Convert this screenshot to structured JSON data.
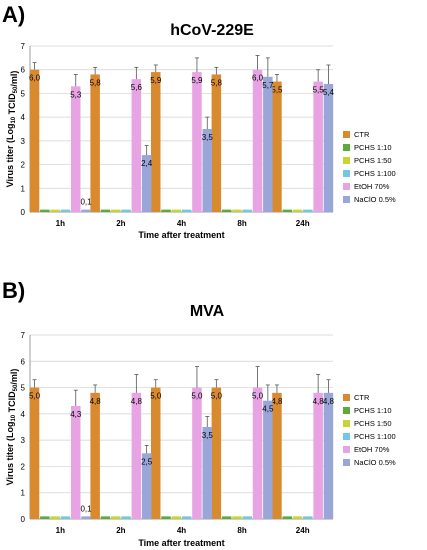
{
  "chart_data": [
    {
      "type": "bar",
      "panel_label": "A)",
      "title": "hCoV-229E",
      "ylabel_pre": "Virus titer (Log",
      "ylabel_sub1": "10",
      "ylabel_mid": " TCID",
      "ylabel_sub2": "50",
      "ylabel_post": "/ml)",
      "xlabel": "Time after treatment",
      "ylim": [
        0,
        7
      ],
      "yticks": [
        "0",
        "1",
        "2",
        "3",
        "4",
        "5",
        "6",
        "7"
      ],
      "categories": [
        "1h",
        "2h",
        "4h",
        "8h",
        "24h"
      ],
      "legend_position": "right",
      "series": [
        {
          "name": "CTR",
          "color": "#d98a2f",
          "values": [
            6.0,
            5.8,
            5.9,
            5.8,
            5.5
          ],
          "errors": [
            0.3,
            0.3,
            0.3,
            0.3,
            0.3
          ],
          "labels": [
            "6,0",
            "5,8",
            "5,9",
            "5,8",
            "5,5"
          ]
        },
        {
          "name": "PCHS 1:10",
          "color": "#5aab3a",
          "values": [
            0.1,
            0.1,
            0.1,
            0.1,
            0.1
          ],
          "errors": [
            0,
            0,
            0,
            0,
            0
          ],
          "labels": [
            "",
            "",
            "",
            "",
            ""
          ]
        },
        {
          "name": "PCHS 1:50",
          "color": "#c8d430",
          "values": [
            0.1,
            0.1,
            0.1,
            0.1,
            0.1
          ],
          "errors": [
            0,
            0,
            0,
            0,
            0
          ],
          "labels": [
            "",
            "",
            "",
            "",
            ""
          ]
        },
        {
          "name": "PCHS 1:100",
          "color": "#72c8e0",
          "values": [
            0.1,
            0.1,
            0.1,
            0.1,
            0.1
          ],
          "errors": [
            0,
            0,
            0,
            0,
            0
          ],
          "labels": [
            "",
            "",
            "",
            "",
            ""
          ]
        },
        {
          "name": "EtOH 70%",
          "color": "#e7a3e3",
          "values": [
            5.3,
            5.6,
            5.9,
            6.0,
            5.5
          ],
          "errors": [
            0.5,
            0.5,
            0.6,
            0.6,
            0.5
          ],
          "labels": [
            "5,3",
            "5,6",
            "5,9",
            "6,0",
            "5,5"
          ]
        },
        {
          "name": "NaClO 0.5%",
          "color": "#9aa6d8",
          "values": [
            0.1,
            2.4,
            3.5,
            5.7,
            5.4
          ],
          "errors": [
            0,
            0.4,
            0.5,
            0.8,
            0.8
          ],
          "labels": [
            "0,1",
            "2,4",
            "3,5",
            "5,7",
            "5,4"
          ]
        }
      ]
    },
    {
      "type": "bar",
      "panel_label": "B)",
      "title": "MVA",
      "ylabel_pre": "Virus titer (Log",
      "ylabel_sub1": "10",
      "ylabel_mid": " TCID",
      "ylabel_sub2": "50",
      "ylabel_post": "/ml)",
      "xlabel": "Time after treatment",
      "ylim": [
        0,
        7
      ],
      "yticks": [
        "0",
        "1",
        "2",
        "3",
        "4",
        "5",
        "6",
        "7"
      ],
      "categories": [
        "1h",
        "2h",
        "4h",
        "8h",
        "24h"
      ],
      "legend_position": "right",
      "series": [
        {
          "name": "CTR",
          "color": "#d98a2f",
          "values": [
            5.0,
            4.8,
            5.0,
            5.0,
            4.8
          ],
          "errors": [
            0.3,
            0.3,
            0.3,
            0.3,
            0.3
          ],
          "labels": [
            "5,0",
            "4,8",
            "5,0",
            "5,0",
            "4,8"
          ]
        },
        {
          "name": "PCHS 1:10",
          "color": "#5aab3a",
          "values": [
            0.1,
            0.1,
            0.1,
            0.1,
            0.1
          ],
          "errors": [
            0,
            0,
            0,
            0,
            0
          ],
          "labels": [
            "",
            "",
            "",
            "",
            ""
          ]
        },
        {
          "name": "PCHS 1:50",
          "color": "#c8d430",
          "values": [
            0.1,
            0.1,
            0.1,
            0.1,
            0.1
          ],
          "errors": [
            0,
            0,
            0,
            0,
            0
          ],
          "labels": [
            "",
            "",
            "",
            "",
            ""
          ]
        },
        {
          "name": "PCHS 1:100",
          "color": "#72c8e0",
          "values": [
            0.1,
            0.1,
            0.1,
            0.1,
            0.1
          ],
          "errors": [
            0,
            0,
            0,
            0,
            0
          ],
          "labels": [
            "",
            "",
            "",
            "",
            ""
          ]
        },
        {
          "name": "EtOH 70%",
          "color": "#e7a3e3",
          "values": [
            4.3,
            4.8,
            5.0,
            5.0,
            4.8
          ],
          "errors": [
            0.6,
            0.7,
            0.8,
            0.8,
            0.7
          ],
          "labels": [
            "4,3",
            "4,8",
            "5,0",
            "5,0",
            "4,8"
          ]
        },
        {
          "name": "NaClO 0.5%",
          "color": "#9aa6d8",
          "values": [
            0.1,
            2.5,
            3.5,
            4.5,
            4.8
          ],
          "errors": [
            0,
            0.3,
            0.4,
            0.6,
            0.5
          ],
          "labels": [
            "0,1",
            "2,5",
            "3,5",
            "4,5",
            "4,8"
          ]
        }
      ]
    }
  ]
}
